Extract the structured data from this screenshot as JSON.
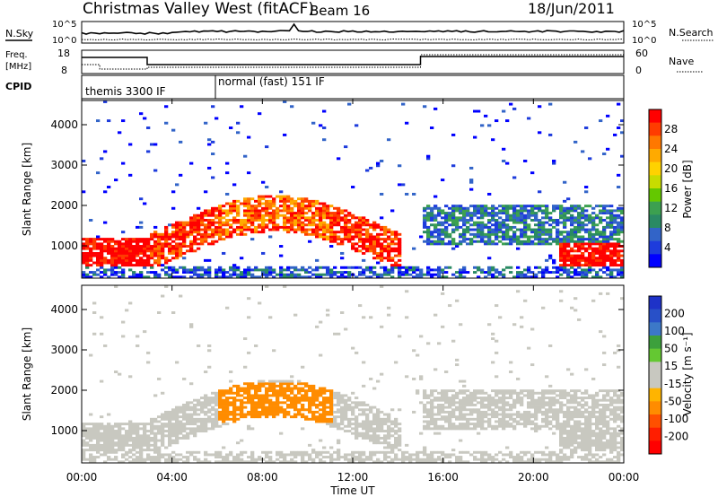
{
  "header": {
    "title": "Christmas Valley West (fitACF)",
    "beam": "Beam 16",
    "date": "18/Jun/2011"
  },
  "panels": {
    "noise": {
      "left_label": "N.Sky",
      "right_label": "N.Search",
      "left_ticks": [
        "10^5",
        "10^0"
      ],
      "right_ticks": [
        "10^5",
        "10^0"
      ]
    },
    "freq": {
      "left_label_line1": "Freq.",
      "left_label_line2": "[MHz]",
      "right_label": "Nave",
      "left_ticks": [
        "18",
        "8"
      ],
      "right_ticks": [
        "60",
        "0"
      ]
    },
    "cpid": {
      "label": "CPID",
      "segments": [
        "themis 3300 IF",
        "normal (fast) 151 IF"
      ]
    }
  },
  "chart_data": [
    {
      "type": "heatmap",
      "name": "power",
      "ylabel": "Slant Range [km]",
      "yticks": [
        1000,
        2000,
        3000,
        4000
      ],
      "ylim": [
        200,
        4600
      ],
      "colorbar_label": "Power [dB]",
      "colorbar_ticks": [
        "28",
        "24",
        "20",
        "16",
        "12",
        "8",
        "4"
      ],
      "colorbar_colors": [
        "#ff0000",
        "#ff3c00",
        "#ff7800",
        "#ffaa00",
        "#ffd200",
        "#c8dc00",
        "#64c800",
        "#3ca050",
        "#2a8a64",
        "#3264c8",
        "#1e3cdc",
        "#0000ff"
      ]
    },
    {
      "type": "heatmap",
      "name": "velocity",
      "ylabel": "Slant Range [km]",
      "yticks": [
        1000,
        2000,
        3000,
        4000
      ],
      "ylim": [
        200,
        4600
      ],
      "colorbar_label": "Velocity [m s⁻¹]",
      "colorbar_ticks": [
        "200",
        "100",
        "50",
        "15",
        "-15",
        "-50",
        "-100",
        "-200"
      ],
      "colorbar_colors": [
        "#1e32c8",
        "#2850c8",
        "#3c78c8",
        "#3ca03c",
        "#64c832",
        "#c8c8c0",
        "#c8c8c0",
        "#ffb400",
        "#ff8c00",
        "#ff5000",
        "#ff1e00",
        "#ff0000"
      ]
    }
  ],
  "xaxis": {
    "label": "Time UT",
    "ticks": [
      "00:00",
      "04:00",
      "08:00",
      "12:00",
      "16:00",
      "20:00",
      "00:00"
    ]
  }
}
